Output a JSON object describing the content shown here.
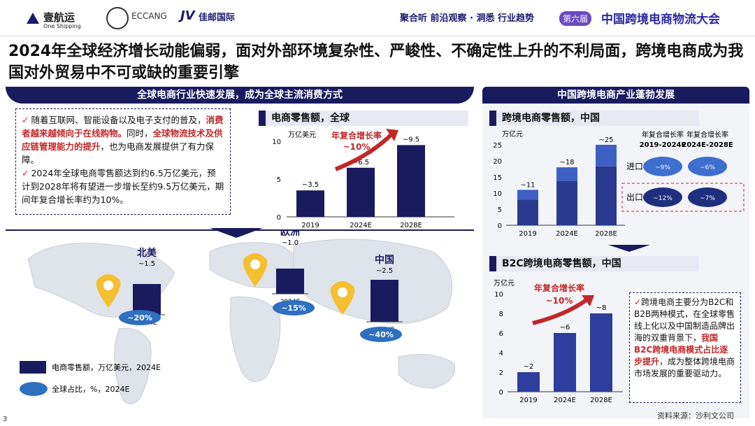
{
  "header": {
    "logo1": "壹航运",
    "logo1_sub": "One Shipping",
    "logo2": "ECCANG",
    "logo3": "佳邮国际",
    "slogan": "聚合听 前沿观察 · 洞悉 行业趋势",
    "conf_badge": "第六届",
    "conf_title": "中国跨境电商物流大会"
  },
  "title": "2024年全球经济增长动能偏弱，面对外部环境复杂性、严峻性、不确定性上升的不利局面，跨境电商成为我国对外贸易中不可或缺的重要引擎",
  "left_section": {
    "header": "全球电商行业快速发展，成为全球主流消费方式",
    "bullet1_a": "随着互联网、智能设备以及电子支付的普及，",
    "bullet1_red1": "消费者越来越倾向于在线购物。",
    "bullet1_b": "同时，",
    "bullet1_red2": "全球物流技术及供应链管理能力的提升",
    "bullet1_c": "，也为电商发展提供了有力保障。",
    "bullet2": "2024年全球电商零售额达到约6.5万亿美元，预计到2028年将有望进一步增长至约9.5万亿美元，期间年复合增长率约为10%。"
  },
  "right_section": {
    "header": "中国跨境电商产业蓬勃发展",
    "note_a": "跨境电商主要分为B2C和B2B两种模式，在全球零售线上化以及中国制造品牌出海的双重背景下，",
    "note_red": "我国B2C跨境电商模式占比逐步提升",
    "note_b": "，成为整体跨境电商市场发展的重要驱动力。"
  },
  "map": {
    "regions": [
      {
        "name": "北美",
        "value": "~1.5",
        "year": "2024E",
        "share": "~20%",
        "v": 1.5
      },
      {
        "name": "欧洲",
        "value": "~1.0",
        "year": "2024E",
        "share": "~15%",
        "v": 1.0
      },
      {
        "name": "中国",
        "value": "~2.5",
        "year": "2024E",
        "share": "~40%",
        "v": 2.5
      }
    ],
    "legend_bar": "电商零售额，万亿美元，2024E",
    "legend_ellipse": "全球占比，%，2024E"
  },
  "source": "资料来源：沙利文公司",
  "page": "3",
  "colors": {
    "navy": "#1a1a5e",
    "mid": "#2e3d9e",
    "red": "#c0282a",
    "ellipse": "#2e6fc0"
  },
  "chart_data": [
    {
      "type": "bar",
      "title": "电商零售额，全球",
      "ylabel": "万亿美元",
      "categories": [
        "2019",
        "2024E",
        "2028E"
      ],
      "values": [
        3.5,
        6.5,
        9.5
      ],
      "labels": [
        "~3.5",
        "~6.5",
        "~9.5"
      ],
      "ylim": [
        0,
        10
      ],
      "yticks": [
        "0",
        "5",
        "10"
      ],
      "annotation": "年复合增长率",
      "annotation_value": "~10%"
    },
    {
      "type": "bar",
      "title": "跨境电商零售额，中国",
      "ylabel": "万亿元",
      "categories": [
        "2019",
        "2024E",
        "2028E"
      ],
      "series": [
        {
          "name": "出口",
          "values": [
            8,
            13.7,
            18.3
          ]
        },
        {
          "name": "进口",
          "values": [
            3,
            4.3,
            6.7
          ]
        }
      ],
      "totals": [
        "~11",
        "~18",
        "~25"
      ],
      "ylim": [
        0,
        25
      ],
      "yticks": [
        "0",
        "5",
        "10",
        "15",
        "20",
        "25"
      ],
      "cagr_headers": [
        "年复合增长率",
        "年复合增长率"
      ],
      "cagr_periods": [
        "2019-2024E",
        "2024E-2028E"
      ],
      "cagr": [
        {
          "name": "进口",
          "values": [
            "~9%",
            "~6%"
          ]
        },
        {
          "name": "出口",
          "values": [
            "~12%",
            "~7%"
          ]
        }
      ]
    },
    {
      "type": "bar",
      "title": "B2C跨境电商零售额，中国",
      "ylabel": "万亿元",
      "categories": [
        "2019",
        "2024E",
        "2028E"
      ],
      "values": [
        2,
        6,
        8
      ],
      "labels": [
        "~2",
        "~6",
        "~8"
      ],
      "ylim": [
        0,
        10
      ],
      "yticks": [
        "0",
        "2",
        "4",
        "6",
        "8",
        "10"
      ],
      "annotation": "年复合增长率",
      "annotation_value": "~10%"
    }
  ]
}
